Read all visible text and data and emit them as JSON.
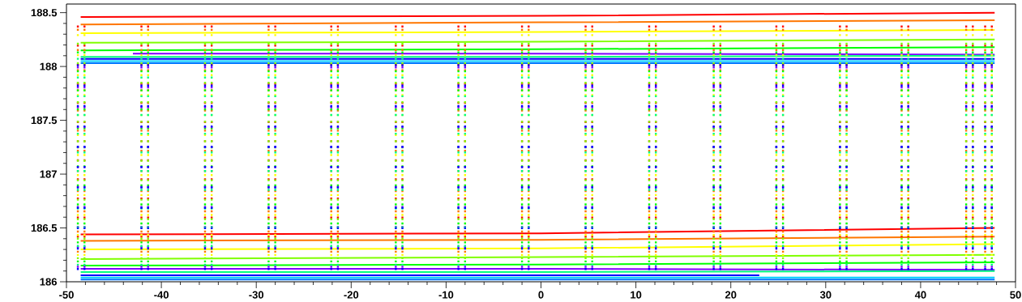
{
  "chart_data": {
    "type": "line",
    "marker": "none",
    "xlim": [
      -50,
      50
    ],
    "ylim": [
      186,
      188.58
    ],
    "xticks": [
      -50,
      -40,
      -30,
      -20,
      -10,
      0,
      10,
      20,
      30,
      40,
      50
    ],
    "yticks": [
      186,
      186.5,
      187,
      187.5,
      188,
      188.5
    ],
    "series": [
      {
        "color": "#ff0000",
        "x": [
          -48.5,
          0,
          47.8
        ],
        "values": [
          188.46,
          188.47,
          188.5
        ]
      },
      {
        "color": "#ff7700",
        "x": [
          -48.5,
          0,
          47.8
        ],
        "values": [
          188.39,
          188.41,
          188.43
        ]
      },
      {
        "color": "#ffff00",
        "x": [
          -48.5,
          0,
          47.8
        ],
        "values": [
          188.31,
          188.32,
          188.34
        ]
      },
      {
        "color": "#80ff00",
        "x": [
          -48.5,
          0,
          47.8
        ],
        "values": [
          188.22,
          188.23,
          188.25
        ]
      },
      {
        "color": "#00ff00",
        "x": [
          -48.5,
          0,
          47.8
        ],
        "values": [
          188.15,
          188.16,
          188.18
        ]
      },
      {
        "color": "#8000ff",
        "x": [
          -43,
          0,
          47.8
        ],
        "values": [
          188.12,
          188.12,
          188.11
        ]
      },
      {
        "color": "#00ff80",
        "x": [
          -48.5,
          0,
          47.8
        ],
        "values": [
          188.09,
          188.09,
          188.1
        ]
      },
      {
        "color": "#0000ff",
        "x": [
          -48.5,
          0,
          47.8
        ],
        "values": [
          188.07,
          188.07,
          188.07
        ]
      },
      {
        "color": "#00ccff",
        "x": [
          -48.5,
          0,
          47.8
        ],
        "values": [
          188.05,
          188.05,
          188.05
        ]
      },
      {
        "color": "#0077ff",
        "x": [
          -48.5,
          0,
          47.8
        ],
        "values": [
          188.03,
          188.03,
          188.03
        ]
      },
      {
        "color": "#ff0000",
        "x": [
          -48.5,
          0,
          47.8
        ],
        "values": [
          186.44,
          186.45,
          186.5
        ]
      },
      {
        "color": "#ff7700",
        "x": [
          -48.5,
          0,
          47.8
        ],
        "values": [
          186.38,
          186.39,
          186.42
        ]
      },
      {
        "color": "#ffff00",
        "x": [
          -48.5,
          0,
          47.8
        ],
        "values": [
          186.3,
          186.31,
          186.35
        ]
      },
      {
        "color": "#80ff00",
        "x": [
          -48.5,
          0,
          47.8
        ],
        "values": [
          186.21,
          186.23,
          186.25
        ]
      },
      {
        "color": "#00ff00",
        "x": [
          -48.5,
          0,
          47.8
        ],
        "values": [
          186.15,
          186.16,
          186.18
        ]
      },
      {
        "color": "#8000ff",
        "x": [
          -48.5,
          0,
          47.8
        ],
        "values": [
          186.12,
          186.12,
          186.11
        ]
      },
      {
        "color": "#00ff80",
        "x": [
          -48.5,
          0,
          47.8
        ],
        "values": [
          186.09,
          186.09,
          186.1
        ]
      },
      {
        "color": "#0000ff",
        "x": [
          -48.5,
          23
        ],
        "values": [
          186.06,
          186.06
        ]
      },
      {
        "color": "#00ccff",
        "x": [
          -48.5,
          0,
          47.8
        ],
        "values": [
          186.04,
          186.04,
          186.04
        ]
      },
      {
        "color": "#0077ff",
        "x": [
          -48.5,
          0,
          47.8
        ],
        "values": [
          186.02,
          186.02,
          186.02
        ]
      },
      {
        "color": "#ff0000",
        "line_style": "dotted",
        "x": [
          -48.8,
          -48.8,
          null,
          -48.1,
          -48.1,
          null,
          -42.1,
          -42.1,
          null,
          -41.4,
          -41.4,
          null,
          -35.4,
          -35.4,
          null,
          -34.7,
          -34.7,
          null,
          -28.7,
          -28.7,
          null,
          -28.0,
          -28.0,
          null,
          -22.1,
          -22.1,
          null,
          -21.4,
          -21.4,
          null,
          -15.3,
          -15.3,
          null,
          -14.6,
          -14.6,
          null,
          -8.7,
          -8.7,
          null,
          -8.0,
          -8.0,
          null,
          -2.0,
          -2.0,
          null,
          -1.3,
          -1.3,
          null,
          4.7,
          4.7,
          null,
          5.4,
          5.4,
          null,
          11.4,
          11.4,
          null,
          12.1,
          12.1,
          null,
          18.2,
          18.2,
          null,
          18.9,
          18.9,
          null,
          24.8,
          24.8,
          null,
          25.5,
          25.5,
          null,
          31.5,
          31.5,
          null,
          32.2,
          32.2,
          null,
          38.0,
          38.0,
          null,
          38.7,
          38.7,
          null,
          44.8,
          44.8,
          null,
          45.5,
          45.5,
          null,
          46.8,
          46.8,
          null,
          47.5,
          47.5,
          null
        ],
        "values": [
          186.41,
          188.38,
          null,
          186.41,
          188.38,
          null,
          186.41,
          188.38,
          null,
          186.41,
          188.38,
          null,
          186.41,
          188.38,
          null,
          186.41,
          188.38,
          null,
          186.41,
          188.38,
          null,
          186.41,
          188.38,
          null,
          186.41,
          188.38,
          null,
          186.41,
          188.38,
          null,
          186.41,
          188.38,
          null,
          186.41,
          188.38,
          null,
          186.41,
          188.38,
          null,
          186.41,
          188.38,
          null,
          186.41,
          188.38,
          null,
          186.41,
          188.38,
          null,
          186.41,
          188.38,
          null,
          186.41,
          188.38,
          null,
          186.41,
          188.38,
          null,
          186.41,
          188.38,
          null,
          186.41,
          188.38,
          null,
          186.41,
          188.38,
          null,
          186.41,
          188.38,
          null,
          186.41,
          188.38,
          null,
          186.41,
          188.38,
          null,
          186.41,
          188.38,
          null,
          186.41,
          188.38,
          null,
          186.41,
          188.38,
          null,
          186.41,
          188.38,
          null,
          186.41,
          188.38,
          null,
          186.41,
          188.38,
          null,
          186.41,
          188.38,
          null
        ]
      },
      {
        "color": "#ff7700",
        "line_style": "dotted",
        "x": [
          -48.8,
          -48.8,
          null,
          -48.1,
          -48.1,
          null,
          -42.1,
          -42.1,
          null,
          -41.4,
          -41.4,
          null,
          -35.4,
          -35.4,
          null,
          -34.7,
          -34.7,
          null,
          -28.7,
          -28.7,
          null,
          -28.0,
          -28.0,
          null,
          -22.1,
          -22.1,
          null,
          -21.4,
          -21.4,
          null,
          -15.3,
          -15.3,
          null,
          -14.6,
          -14.6,
          null,
          -8.7,
          -8.7,
          null,
          -8.0,
          -8.0,
          null,
          -2.0,
          -2.0,
          null,
          -1.3,
          -1.3,
          null,
          4.7,
          4.7,
          null,
          5.4,
          5.4,
          null,
          11.4,
          11.4,
          null,
          12.1,
          12.1,
          null,
          18.2,
          18.2,
          null,
          18.9,
          18.9,
          null,
          24.8,
          24.8,
          null,
          25.5,
          25.5,
          null,
          31.5,
          31.5,
          null,
          32.2,
          32.2,
          null,
          38.0,
          38.0,
          null,
          38.7,
          38.7,
          null,
          44.8,
          44.8,
          null,
          45.5,
          45.5,
          null,
          46.8,
          46.8,
          null,
          47.5,
          47.5,
          null
        ],
        "values": [
          186.27,
          188.35,
          null,
          186.27,
          188.35,
          null,
          186.27,
          188.35,
          null,
          186.27,
          188.35,
          null,
          186.27,
          188.35,
          null,
          186.27,
          188.35,
          null,
          186.27,
          188.35,
          null,
          186.27,
          188.35,
          null,
          186.27,
          188.35,
          null,
          186.27,
          188.35,
          null,
          186.27,
          188.35,
          null,
          186.27,
          188.35,
          null,
          186.27,
          188.35,
          null,
          186.27,
          188.35,
          null,
          186.27,
          188.35,
          null,
          186.27,
          188.35,
          null,
          186.27,
          188.35,
          null,
          186.27,
          188.35,
          null,
          186.27,
          188.35,
          null,
          186.27,
          188.35,
          null,
          186.27,
          188.35,
          null,
          186.27,
          188.35,
          null,
          186.27,
          188.35,
          null,
          186.27,
          188.35,
          null,
          186.27,
          188.35,
          null,
          186.27,
          188.35,
          null,
          186.27,
          188.35,
          null,
          186.27,
          188.35,
          null,
          186.27,
          188.35,
          null,
          186.27,
          188.35,
          null,
          186.27,
          188.35,
          null,
          186.27,
          188.35,
          null
        ]
      },
      {
        "color": "#ffff00",
        "line_style": "dotted",
        "x": [
          -48.8,
          -48.8,
          null,
          -48.1,
          -48.1,
          null,
          -42.1,
          -42.1,
          null,
          -41.4,
          -41.4,
          null,
          -35.4,
          -35.4,
          null,
          -34.7,
          -34.7,
          null,
          -28.7,
          -28.7,
          null,
          -28.0,
          -28.0,
          null,
          -22.1,
          -22.1,
          null,
          -21.4,
          -21.4,
          null,
          -15.3,
          -15.3,
          null,
          -14.6,
          -14.6,
          null,
          -8.7,
          -8.7,
          null,
          -8.0,
          -8.0,
          null,
          -2.0,
          -2.0,
          null,
          -1.3,
          -1.3,
          null,
          4.7,
          4.7,
          null,
          5.4,
          5.4,
          null,
          11.4,
          11.4,
          null,
          12.1,
          12.1,
          null,
          18.2,
          18.2,
          null,
          18.9,
          18.9,
          null,
          24.8,
          24.8,
          null,
          25.5,
          25.5,
          null,
          31.5,
          31.5,
          null,
          32.2,
          32.2,
          null,
          38.0,
          38.0,
          null,
          38.7,
          38.7,
          null,
          44.8,
          44.8,
          null,
          45.5,
          45.5,
          null,
          46.8,
          46.8,
          null,
          47.5,
          47.5,
          null
        ],
        "values": [
          186.24,
          188.3,
          null,
          186.24,
          188.3,
          null,
          186.24,
          188.3,
          null,
          186.24,
          188.3,
          null,
          186.24,
          188.3,
          null,
          186.24,
          188.3,
          null,
          186.24,
          188.3,
          null,
          186.24,
          188.3,
          null,
          186.24,
          188.3,
          null,
          186.24,
          188.3,
          null,
          186.24,
          188.3,
          null,
          186.24,
          188.3,
          null,
          186.24,
          188.3,
          null,
          186.24,
          188.3,
          null,
          186.24,
          188.3,
          null,
          186.24,
          188.3,
          null,
          186.24,
          188.3,
          null,
          186.24,
          188.3,
          null,
          186.24,
          188.3,
          null,
          186.24,
          188.3,
          null,
          186.24,
          188.3,
          null,
          186.24,
          188.3,
          null,
          186.24,
          188.3,
          null,
          186.24,
          188.3,
          null,
          186.24,
          188.3,
          null,
          186.24,
          188.3,
          null,
          186.24,
          188.3,
          null,
          186.24,
          188.3,
          null,
          186.24,
          188.3,
          null,
          186.24,
          188.3,
          null,
          186.24,
          188.3,
          null,
          186.24,
          188.3,
          null
        ]
      },
      {
        "color": "#80ff00",
        "line_style": "dotted",
        "x": [
          -48.8,
          -48.8,
          null,
          -48.1,
          -48.1,
          null,
          -42.1,
          -42.1,
          null,
          -41.4,
          -41.4,
          null,
          -35.4,
          -35.4,
          null,
          -34.7,
          -34.7,
          null,
          -28.7,
          -28.7,
          null,
          -28.0,
          -28.0,
          null,
          -22.1,
          -22.1,
          null,
          -21.4,
          -21.4,
          null,
          -15.3,
          -15.3,
          null,
          -14.6,
          -14.6,
          null,
          -8.7,
          -8.7,
          null,
          -8.0,
          -8.0,
          null,
          -2.0,
          -2.0,
          null,
          -1.3,
          -1.3,
          null,
          4.7,
          4.7,
          null,
          5.4,
          5.4,
          null,
          11.4,
          11.4,
          null,
          12.1,
          12.1,
          null,
          18.2,
          18.2,
          null,
          18.9,
          18.9,
          null,
          24.8,
          24.8,
          null,
          25.5,
          25.5,
          null,
          31.5,
          31.5,
          null,
          32.2,
          32.2,
          null,
          38.0,
          38.0,
          null,
          38.7,
          38.7,
          null,
          44.8,
          44.8,
          null,
          45.5,
          45.5,
          null,
          46.8,
          46.8,
          null,
          47.5,
          47.5,
          null
        ],
        "values": [
          186.21,
          188.22,
          null,
          186.21,
          188.22,
          null,
          186.21,
          188.22,
          null,
          186.21,
          188.22,
          null,
          186.21,
          188.22,
          null,
          186.21,
          188.22,
          null,
          186.21,
          188.22,
          null,
          186.21,
          188.22,
          null,
          186.21,
          188.22,
          null,
          186.21,
          188.22,
          null,
          186.21,
          188.22,
          null,
          186.21,
          188.22,
          null,
          186.21,
          188.22,
          null,
          186.21,
          188.22,
          null,
          186.21,
          188.22,
          null,
          186.21,
          188.22,
          null,
          186.21,
          188.22,
          null,
          186.21,
          188.22,
          null,
          186.21,
          188.22,
          null,
          186.21,
          188.22,
          null,
          186.21,
          188.22,
          null,
          186.21,
          188.22,
          null,
          186.21,
          188.22,
          null,
          186.21,
          188.22,
          null,
          186.21,
          188.22,
          null,
          186.21,
          188.22,
          null,
          186.21,
          188.22,
          null,
          186.21,
          188.22,
          null,
          186.21,
          188.22,
          null,
          186.21,
          188.22,
          null,
          186.21,
          188.22,
          null,
          186.21,
          188.22,
          null
        ]
      },
      {
        "color": "#00ff00",
        "line_style": "dotted",
        "x": [
          -48.8,
          -48.8,
          null,
          -48.1,
          -48.1,
          null,
          -42.1,
          -42.1,
          null,
          -41.4,
          -41.4,
          null,
          -35.4,
          -35.4,
          null,
          -34.7,
          -34.7,
          null,
          -28.7,
          -28.7,
          null,
          -28.0,
          -28.0,
          null,
          -22.1,
          -22.1,
          null,
          -21.4,
          -21.4,
          null,
          -15.3,
          -15.3,
          null,
          -14.6,
          -14.6,
          null,
          -8.7,
          -8.7,
          null,
          -8.0,
          -8.0,
          null,
          -2.0,
          -2.0,
          null,
          -1.3,
          -1.3,
          null,
          4.7,
          4.7,
          null,
          5.4,
          5.4,
          null,
          11.4,
          11.4,
          null,
          12.1,
          12.1,
          null,
          18.2,
          18.2,
          null,
          18.9,
          18.9,
          null,
          24.8,
          24.8,
          null,
          25.5,
          25.5,
          null,
          31.5,
          31.5,
          null,
          32.2,
          32.2,
          null,
          38.0,
          38.0,
          null,
          38.7,
          38.7,
          null,
          44.8,
          44.8,
          null,
          45.5,
          45.5,
          null,
          46.8,
          46.8,
          null,
          47.5,
          47.5,
          null
        ],
        "values": [
          186.18,
          188.14,
          null,
          186.18,
          188.14,
          null,
          186.18,
          188.14,
          null,
          186.18,
          188.14,
          null,
          186.18,
          188.14,
          null,
          186.18,
          188.14,
          null,
          186.18,
          188.14,
          null,
          186.18,
          188.14,
          null,
          186.18,
          188.14,
          null,
          186.18,
          188.14,
          null,
          186.18,
          188.14,
          null,
          186.18,
          188.14,
          null,
          186.18,
          188.14,
          null,
          186.18,
          188.14,
          null,
          186.18,
          188.14,
          null,
          186.18,
          188.14,
          null,
          186.18,
          188.14,
          null,
          186.18,
          188.14,
          null,
          186.18,
          188.14,
          null,
          186.18,
          188.14,
          null,
          186.18,
          188.14,
          null,
          186.18,
          188.14,
          null,
          186.18,
          188.14,
          null,
          186.18,
          188.14,
          null,
          186.18,
          188.14,
          null,
          186.18,
          188.14,
          null,
          186.18,
          188.14,
          null,
          186.18,
          188.14,
          null,
          186.18,
          188.14,
          null,
          186.18,
          188.14,
          null,
          186.18,
          188.14,
          null,
          186.18,
          188.14,
          null
        ]
      },
      {
        "color": "#8000ff",
        "line_style": "dotted",
        "x": [
          -48.8,
          -48.8,
          null,
          -48.1,
          -48.1,
          null,
          -42.1,
          -42.1,
          null,
          -41.4,
          -41.4,
          null,
          -35.4,
          -35.4,
          null,
          -34.7,
          -34.7,
          null,
          -28.7,
          -28.7,
          null,
          -28.0,
          -28.0,
          null,
          -22.1,
          -22.1,
          null,
          -21.4,
          -21.4,
          null,
          -15.3,
          -15.3,
          null,
          -14.6,
          -14.6,
          null,
          -8.7,
          -8.7,
          null,
          -8.0,
          -8.0,
          null,
          -2.0,
          -2.0,
          null,
          -1.3,
          -1.3,
          null,
          4.7,
          4.7,
          null,
          5.4,
          5.4,
          null,
          11.4,
          11.4,
          null,
          12.1,
          12.1,
          null,
          18.2,
          18.2,
          null,
          18.9,
          18.9,
          null,
          24.8,
          24.8,
          null,
          25.5,
          25.5,
          null,
          31.5,
          31.5,
          null,
          32.2,
          32.2,
          null,
          38.0,
          38.0,
          null,
          38.7,
          38.7,
          null,
          44.8,
          44.8,
          null,
          45.5,
          45.5,
          null,
          46.8,
          46.8,
          null,
          47.5,
          47.5,
          null
        ],
        "values": [
          186.13,
          188.0,
          null,
          186.13,
          188.0,
          null,
          186.13,
          188.0,
          null,
          186.13,
          188.0,
          null,
          186.13,
          188.0,
          null,
          186.13,
          188.0,
          null,
          186.13,
          188.0,
          null,
          186.13,
          188.0,
          null,
          186.13,
          188.0,
          null,
          186.13,
          188.0,
          null,
          186.13,
          188.0,
          null,
          186.13,
          188.0,
          null,
          186.13,
          188.0,
          null,
          186.13,
          188.0,
          null,
          186.13,
          188.0,
          null,
          186.13,
          188.0,
          null,
          186.13,
          188.0,
          null,
          186.13,
          188.0,
          null,
          186.13,
          188.0,
          null,
          186.13,
          188.0,
          null,
          186.13,
          188.0,
          null,
          186.13,
          188.0,
          null,
          186.13,
          188.0,
          null,
          186.13,
          188.0,
          null,
          186.13,
          188.0,
          null,
          186.13,
          188.0,
          null,
          186.13,
          188.0,
          null,
          186.13,
          188.0,
          null,
          186.13,
          188.0,
          null,
          186.13,
          188.0,
          null,
          186.13,
          188.0,
          null,
          186.13,
          188.0,
          null
        ]
      },
      {
        "color": "#00ff80",
        "line_style": "dotted",
        "x": [
          -48.8,
          -48.8,
          null,
          -48.1,
          -48.1,
          null,
          -42.1,
          -42.1,
          null,
          -41.4,
          -41.4,
          null,
          -35.4,
          -35.4,
          null,
          -34.7,
          -34.7,
          null,
          -28.7,
          -28.7,
          null,
          -28.0,
          -28.0,
          null,
          -22.1,
          -22.1,
          null,
          -21.4,
          -21.4,
          null,
          -15.3,
          -15.3,
          null,
          -14.6,
          -14.6,
          null,
          -8.7,
          -8.7,
          null,
          -8.0,
          -8.0,
          null,
          -2.0,
          -2.0,
          null,
          -1.3,
          -1.3,
          null,
          4.7,
          4.7,
          null,
          5.4,
          5.4,
          null,
          11.4,
          11.4,
          null,
          12.1,
          12.1,
          null,
          18.2,
          18.2,
          null,
          18.9,
          18.9,
          null,
          24.8,
          24.8,
          null,
          25.5,
          25.5,
          null,
          31.5,
          31.5,
          null,
          32.2,
          32.2,
          null,
          38.0,
          38.0,
          null,
          38.7,
          38.7,
          null,
          44.8,
          44.8,
          null,
          45.5,
          45.5,
          null,
          46.8,
          46.8,
          null,
          47.5,
          47.5,
          null
        ],
        "values": [
          186.15,
          188.08,
          null,
          186.15,
          188.08,
          null,
          186.15,
          188.08,
          null,
          186.15,
          188.08,
          null,
          186.15,
          188.08,
          null,
          186.15,
          188.08,
          null,
          186.15,
          188.08,
          null,
          186.15,
          188.08,
          null,
          186.15,
          188.08,
          null,
          186.15,
          188.08,
          null,
          186.15,
          188.08,
          null,
          186.15,
          188.08,
          null,
          186.15,
          188.08,
          null,
          186.15,
          188.08,
          null,
          186.15,
          188.08,
          null,
          186.15,
          188.08,
          null,
          186.15,
          188.08,
          null,
          186.15,
          188.08,
          null,
          186.15,
          188.08,
          null,
          186.15,
          188.08,
          null,
          186.15,
          188.08,
          null,
          186.15,
          188.08,
          null,
          186.15,
          188.08,
          null,
          186.15,
          188.08,
          null,
          186.15,
          188.08,
          null,
          186.15,
          188.08,
          null,
          186.15,
          188.08,
          null,
          186.15,
          188.08,
          null,
          186.15,
          188.08,
          null,
          186.15,
          188.08,
          null,
          186.15,
          188.08,
          null,
          186.15,
          188.08,
          null
        ]
      },
      {
        "color": "#0000ff",
        "line_style": "dotted",
        "x": [
          -48.8,
          -48.8,
          null,
          -48.1,
          -48.1,
          null,
          -42.1,
          -42.1,
          null,
          -41.4,
          -41.4,
          null,
          -35.4,
          -35.4,
          null,
          -34.7,
          -34.7,
          null,
          -28.7,
          -28.7,
          null,
          -28.0,
          -28.0,
          null,
          -22.1,
          -22.1,
          null,
          -21.4,
          -21.4,
          null,
          -15.3,
          -15.3,
          null,
          -14.6,
          -14.6,
          null,
          -8.7,
          -8.7,
          null,
          -8.0,
          -8.0,
          null,
          -2.0,
          -2.0,
          null,
          -1.3,
          -1.3,
          null,
          4.7,
          4.7,
          null,
          5.4,
          5.4,
          null,
          11.4,
          11.4,
          null,
          12.1,
          12.1,
          null,
          18.2,
          18.2,
          null,
          18.9,
          18.9,
          null,
          24.8,
          24.8,
          null,
          25.5,
          25.5,
          null,
          31.5,
          31.5,
          null,
          32.2,
          32.2,
          null,
          38.0,
          38.0,
          null,
          38.7,
          38.7,
          null,
          44.8,
          44.8,
          null,
          45.5,
          45.5,
          null,
          46.8,
          46.8,
          null,
          47.5,
          47.5,
          null
        ],
        "values": [
          186.11,
          188.02,
          null,
          186.11,
          188.02,
          null,
          186.11,
          188.02,
          null,
          186.11,
          188.02,
          null,
          186.11,
          188.02,
          null,
          186.11,
          188.02,
          null,
          186.11,
          188.02,
          null,
          186.11,
          188.02,
          null,
          186.11,
          188.02,
          null,
          186.11,
          188.02,
          null,
          186.11,
          188.02,
          null,
          186.11,
          188.02,
          null,
          186.11,
          188.02,
          null,
          186.11,
          188.02,
          null,
          186.11,
          188.02,
          null,
          186.11,
          188.02,
          null,
          186.11,
          188.02,
          null,
          186.11,
          188.02,
          null,
          186.11,
          188.02,
          null,
          186.11,
          188.02,
          null,
          186.11,
          188.02,
          null,
          186.11,
          188.02,
          null,
          186.11,
          188.02,
          null,
          186.11,
          188.02,
          null,
          186.11,
          188.02,
          null,
          186.11,
          188.02,
          null,
          186.11,
          188.02,
          null,
          186.11,
          188.02,
          null,
          186.11,
          188.02,
          null,
          186.11,
          188.02,
          null,
          186.11,
          188.02,
          null,
          186.11,
          188.02,
          null
        ]
      }
    ]
  }
}
